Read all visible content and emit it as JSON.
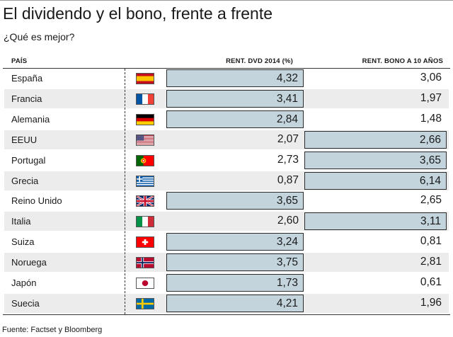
{
  "chart_data": {
    "type": "table",
    "title": "El dividendo y el bono, frente a frente",
    "subtitle": "¿Qué es mejor?",
    "columns": [
      "PAÍS",
      "RENT. DVD 2014 (%)",
      "RENT. BONO A 10 AÑOS"
    ],
    "rows": [
      {
        "country": "España",
        "flag": "spain-flag-icon",
        "dvd": "4,32",
        "bono": "3,06",
        "highlight": "dvd"
      },
      {
        "country": "Francia",
        "flag": "france-flag-icon",
        "dvd": "3,41",
        "bono": "1,97",
        "highlight": "dvd"
      },
      {
        "country": "Alemania",
        "flag": "germany-flag-icon",
        "dvd": "2,84",
        "bono": "1,48",
        "highlight": "dvd"
      },
      {
        "country": "EEUU",
        "flag": "usa-flag-icon",
        "dvd": "2,07",
        "bono": "2,66",
        "highlight": "bono"
      },
      {
        "country": "Portugal",
        "flag": "portugal-flag-icon",
        "dvd": "2,73",
        "bono": "3,65",
        "highlight": "bono"
      },
      {
        "country": "Grecia",
        "flag": "greece-flag-icon",
        "dvd": "0,87",
        "bono": "6,14",
        "highlight": "bono"
      },
      {
        "country": "Reino Unido",
        "flag": "uk-flag-icon",
        "dvd": "3,65",
        "bono": "2,65",
        "highlight": "dvd"
      },
      {
        "country": "Italia",
        "flag": "italy-flag-icon",
        "dvd": "2,60",
        "bono": "3,11",
        "highlight": "bono"
      },
      {
        "country": "Suiza",
        "flag": "switzerland-flag-icon",
        "dvd": "3,24",
        "bono": "0,81",
        "highlight": "dvd"
      },
      {
        "country": "Noruega",
        "flag": "norway-flag-icon",
        "dvd": "3,75",
        "bono": "2,81",
        "highlight": "dvd"
      },
      {
        "country": "Japón",
        "flag": "japan-flag-icon",
        "dvd": "1,73",
        "bono": "0,61",
        "highlight": "dvd"
      },
      {
        "country": "Suecia",
        "flag": "sweden-flag-icon",
        "dvd": "4,21",
        "bono": "1,96",
        "highlight": "dvd"
      }
    ],
    "colors": {
      "highlight": "#c3d4dd",
      "row_alt": "#ececec"
    }
  },
  "footer": {
    "source": "Fuente: Factset y Bloomberg"
  }
}
